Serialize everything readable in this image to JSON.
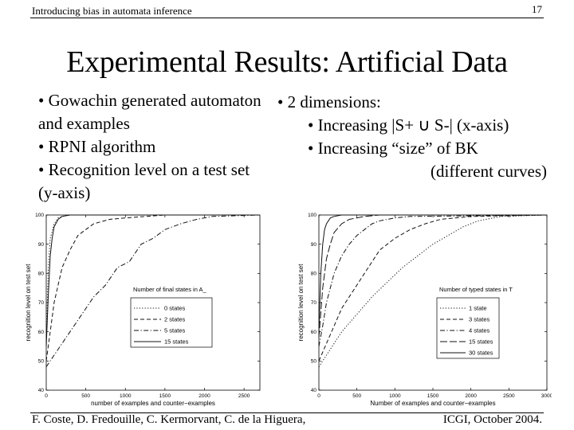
{
  "header": {
    "left": "Introducing bias in automata inference",
    "page_number": "17"
  },
  "title": "Experimental Results: Artificial Data",
  "left_bullets": [
    "• Gowachin generated automaton and examples",
    "• RPNI algorithm",
    "• Recognition level on a test set (y-axis)"
  ],
  "right_text": {
    "head": "• 2 dimensions:",
    "line1": "• Increasing |S+ ∪ S-| (x-axis)",
    "line2": "• Increasing “size” of BK",
    "line3": "(different curves)"
  },
  "footer": {
    "left": "F. Coste, D. Fredouille, C. Kermorvant, C. de la Higuera,",
    "right": "ICGI, October 2004."
  },
  "colors": {
    "text": "#000000",
    "axis": "#000000",
    "grid_bg": "#ffffff"
  },
  "chart_data": [
    {
      "type": "line",
      "title": "",
      "xlabel": "number of examples and counter−examples",
      "ylabel": "recognition level on test set",
      "xlim": [
        0,
        2700
      ],
      "ylim": [
        40,
        100
      ],
      "xticks": [
        0,
        500,
        1000,
        1500,
        2000,
        2500
      ],
      "yticks": [
        40,
        50,
        60,
        70,
        80,
        90,
        100
      ],
      "legend_title": "Number of final states in A_",
      "legend_position": "center-right",
      "series": [
        {
          "name": "0 states",
          "style": "dotted",
          "x": [
            0,
            25,
            50,
            100,
            150,
            200,
            300,
            400,
            600,
            900,
            1500,
            2700
          ],
          "y": [
            55,
            82,
            92,
            97,
            99,
            99.5,
            100,
            100,
            100,
            100,
            100,
            100
          ]
        },
        {
          "name": "2 states",
          "style": "dashed",
          "x": [
            0,
            50,
            100,
            150,
            200,
            300,
            400,
            500,
            600,
            800,
            1000,
            1500,
            2700
          ],
          "y": [
            50,
            60,
            70,
            76,
            82,
            88,
            93,
            95,
            97,
            98.5,
            99,
            100,
            100
          ]
        },
        {
          "name": "5 states",
          "style": "dashdot",
          "x": [
            0,
            100,
            200,
            300,
            450,
            600,
            750,
            900,
            1050,
            1200,
            1350,
            1500,
            1700,
            1900,
            2100,
            2700
          ],
          "y": [
            48,
            52,
            56,
            60,
            66,
            72,
            76,
            82,
            84,
            90,
            92,
            95,
            97,
            98.5,
            99.5,
            100
          ]
        },
        {
          "name": "15 states",
          "style": "solid",
          "x": [
            0,
            25,
            50,
            75,
            100,
            150,
            200,
            300,
            400,
            2700
          ],
          "y": [
            55,
            72,
            86,
            92,
            96,
            98.5,
            99.5,
            100,
            100,
            100
          ]
        }
      ]
    },
    {
      "type": "line",
      "title": "",
      "xlabel": "Number of examples and counter−examples",
      "ylabel": "recognition level on test set",
      "xlim": [
        0,
        3000
      ],
      "ylim": [
        40,
        100
      ],
      "xticks": [
        0,
        500,
        1000,
        1500,
        2000,
        2500,
        3000
      ],
      "yticks": [
        40,
        50,
        60,
        70,
        80,
        90,
        100
      ],
      "legend_title": "Number of typed states in T",
      "legend_position": "center-right",
      "series": [
        {
          "name": "1 state",
          "style": "dotted",
          "x": [
            0,
            100,
            200,
            300,
            400,
            500,
            700,
            900,
            1100,
            1300,
            1500,
            1700,
            1900,
            2100,
            2400,
            3000
          ],
          "y": [
            48,
            52,
            56,
            60,
            63,
            66,
            72,
            77,
            82,
            86,
            90,
            93,
            96,
            98,
            99.5,
            100
          ]
        },
        {
          "name": "3 states",
          "style": "dashed",
          "x": [
            0,
            100,
            200,
            300,
            400,
            500,
            600,
            700,
            800,
            900,
            1000,
            1200,
            1400,
            1600,
            2000,
            3000
          ],
          "y": [
            50,
            56,
            62,
            68,
            72,
            76,
            80,
            84,
            88,
            90,
            92,
            95,
            97,
            98.5,
            99.5,
            100
          ]
        },
        {
          "name": "4 states",
          "style": "dashdot",
          "x": [
            0,
            50,
            100,
            200,
            300,
            400,
            500,
            600,
            700,
            800,
            1000,
            1200,
            3000
          ],
          "y": [
            55,
            62,
            70,
            80,
            86,
            90,
            93,
            95,
            97,
            98,
            99,
            99.5,
            100
          ]
        },
        {
          "name": "15 states",
          "style": "longdash",
          "x": [
            0,
            50,
            100,
            150,
            200,
            300,
            400,
            600,
            800,
            3000
          ],
          "y": [
            58,
            75,
            85,
            90,
            94,
            97,
            98.5,
            99.5,
            100,
            100
          ]
        },
        {
          "name": "30 states",
          "style": "solid",
          "x": [
            0,
            25,
            50,
            75,
            100,
            150,
            200,
            300,
            3000
          ],
          "y": [
            60,
            80,
            90,
            95,
            97,
            99,
            99.5,
            100,
            100
          ]
        }
      ]
    }
  ]
}
